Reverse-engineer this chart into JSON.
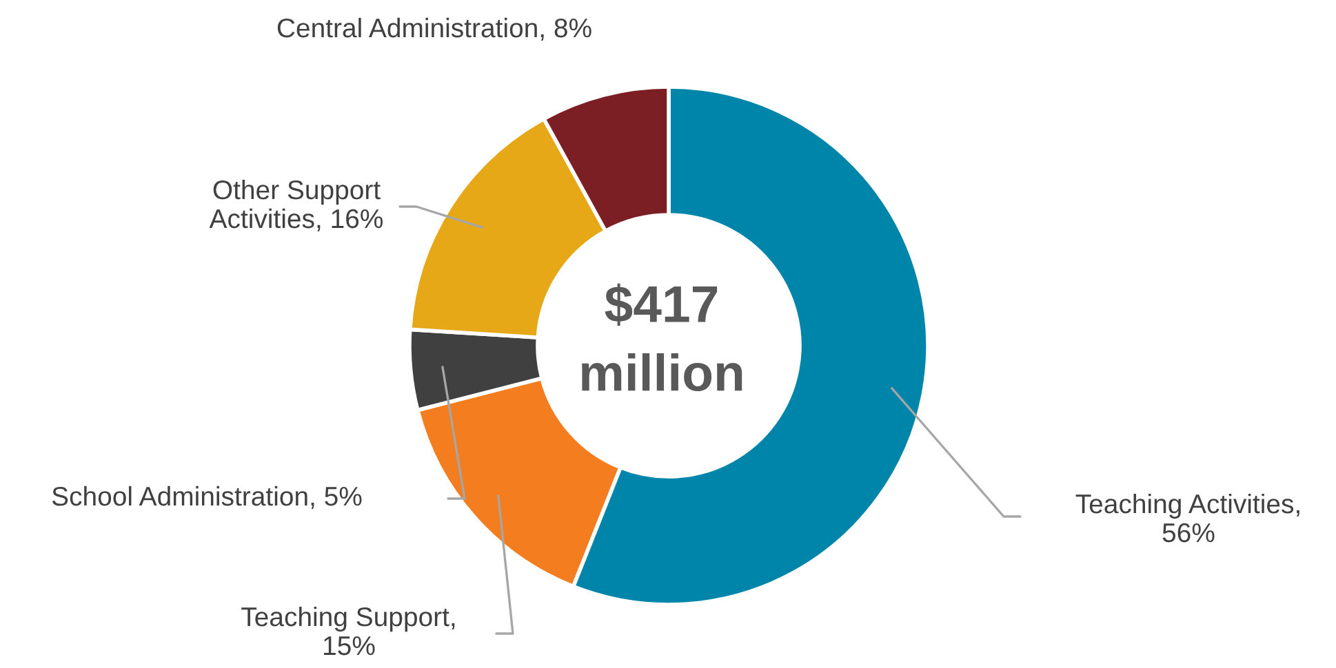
{
  "chart_data": {
    "type": "donut",
    "categories": [
      "Teaching Activities, 56%",
      "Teaching Support, 15%",
      "School Administration, 5%",
      "Other Support Activities, 16%",
      "Central Administration, 8%"
    ],
    "values": [
      56,
      15,
      5,
      16,
      8
    ],
    "colors": [
      "#0085aa",
      "#f47d20",
      "#404040",
      "#e6a817",
      "#7b1f24"
    ],
    "annotations": [
      "$417\nmillion"
    ]
  }
}
